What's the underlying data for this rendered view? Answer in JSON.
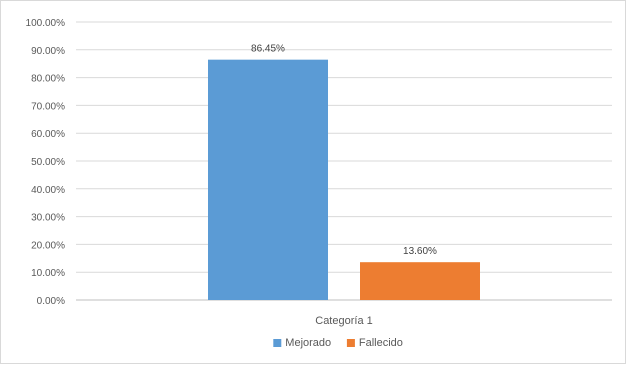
{
  "chart_data": {
    "type": "bar",
    "categories": [
      "Categoría 1"
    ],
    "series": [
      {
        "name": "Mejorado",
        "values": [
          86.45
        ],
        "color": "#5B9BD5"
      },
      {
        "name": "Fallecido",
        "values": [
          13.6
        ],
        "color": "#ED7D31"
      }
    ],
    "data_labels": [
      "86.45%",
      "13.60%"
    ],
    "yticks": [
      "0.00%",
      "10.00%",
      "20.00%",
      "30.00%",
      "40.00%",
      "50.00%",
      "60.00%",
      "70.00%",
      "80.00%",
      "90.00%",
      "100.00%"
    ],
    "ylim": [
      0,
      100
    ],
    "grid": true,
    "legend_position": "bottom",
    "title": "",
    "xlabel": "",
    "ylabel": ""
  }
}
